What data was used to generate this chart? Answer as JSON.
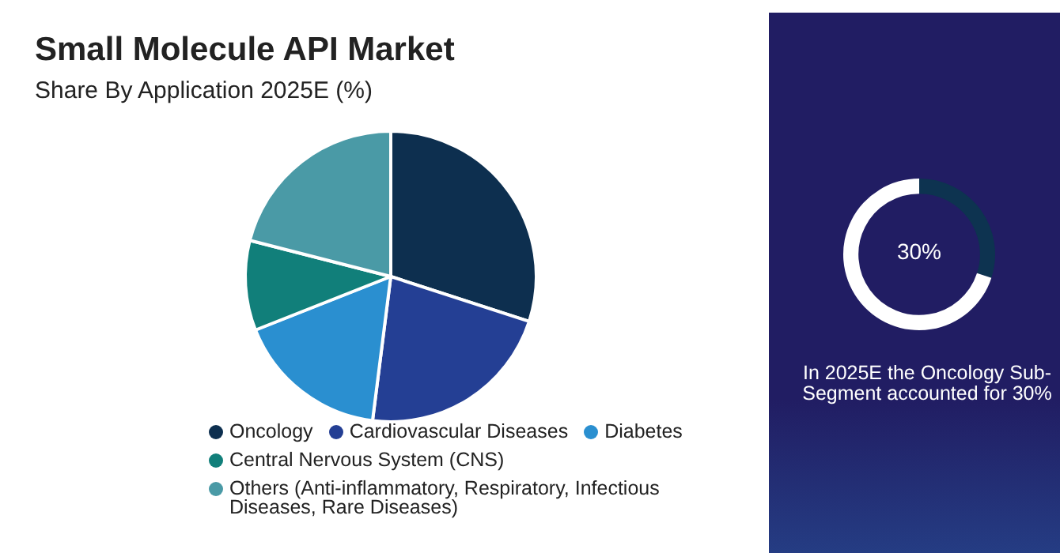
{
  "chart_data": [
    {
      "type": "pie",
      "title": "Small Molecule API Market",
      "subtitle": "Share By Application 2025E (%)",
      "categories": [
        "Oncology",
        "Cardiovascular Diseases",
        "Diabetes",
        "Central Nervous System (CNS)",
        "Others (Anti-inflammatory, Respiratory, Infectious Diseases, Rare Diseases)"
      ],
      "values": [
        30,
        22,
        17,
        10,
        21
      ],
      "colors": [
        "#0d2f4f",
        "#243f94",
        "#2a8fd0",
        "#117f7a",
        "#4a9aa6"
      ],
      "legend": "bottom"
    },
    {
      "type": "donut",
      "categories": [
        null,
        null
      ],
      "values": [
        30,
        70
      ],
      "colors": [
        "#0d3350",
        "#ffffff"
      ],
      "annotations": [
        "30%",
        "In 2025E the Oncology Sub-Segment accounted for 30%"
      ]
    }
  ]
}
